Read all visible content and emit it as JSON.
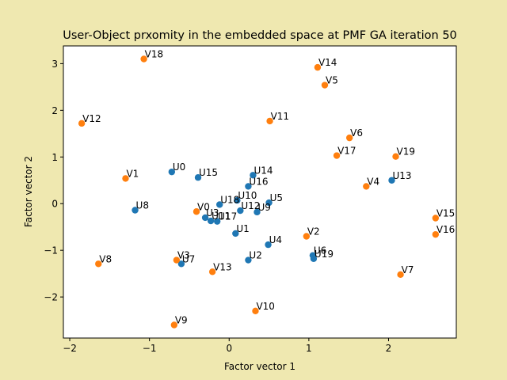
{
  "chart_data": {
    "type": "scatter",
    "title": "User-Object prxomity in the embedded space at PMF GA iteration 50",
    "xlabel": "Factor vector 1",
    "ylabel": "Factor vector 2",
    "xlim": [
      -2.08,
      2.85
    ],
    "ylim": [
      -2.88,
      3.38
    ],
    "xticks": [
      -2,
      -1,
      0,
      1,
      2
    ],
    "yticks": [
      -2,
      -1,
      0,
      1,
      2,
      3
    ],
    "grid": false,
    "colors": {
      "users": "#1f77b4",
      "objects": "#ff7f0e",
      "background": "#efe8b0",
      "axes_bg": "#ffffff"
    },
    "series": [
      {
        "key": "users",
        "points": [
          {
            "label": "U0",
            "x": -0.72,
            "y": 0.68
          },
          {
            "label": "U1",
            "x": 0.08,
            "y": -0.64
          },
          {
            "label": "U2",
            "x": 0.24,
            "y": -1.21
          },
          {
            "label": "U3",
            "x": -0.3,
            "y": -0.3
          },
          {
            "label": "U4",
            "x": 0.49,
            "y": -0.88
          },
          {
            "label": "U5",
            "x": 0.5,
            "y": 0.02
          },
          {
            "label": "U6",
            "x": 1.05,
            "y": -1.11
          },
          {
            "label": "U7",
            "x": -0.6,
            "y": -1.29
          },
          {
            "label": "U8",
            "x": -1.18,
            "y": -0.14
          },
          {
            "label": "U9",
            "x": 0.35,
            "y": -0.18
          },
          {
            "label": "U10",
            "x": 0.1,
            "y": 0.07
          },
          {
            "label": "U11",
            "x": -0.23,
            "y": -0.37
          },
          {
            "label": "U12",
            "x": 0.14,
            "y": -0.15
          },
          {
            "label": "U13",
            "x": 2.04,
            "y": 0.5
          },
          {
            "label": "U14",
            "x": 0.3,
            "y": 0.61
          },
          {
            "label": "U15",
            "x": -0.39,
            "y": 0.56
          },
          {
            "label": "U16",
            "x": 0.24,
            "y": 0.37
          },
          {
            "label": "U17",
            "x": -0.15,
            "y": -0.38
          },
          {
            "label": "U18",
            "x": -0.12,
            "y": -0.02
          },
          {
            "label": "U19",
            "x": 1.06,
            "y": -1.18
          }
        ]
      },
      {
        "key": "objects",
        "points": [
          {
            "label": "V0",
            "x": -0.41,
            "y": -0.17
          },
          {
            "label": "V1",
            "x": -1.3,
            "y": 0.54
          },
          {
            "label": "V2",
            "x": 0.97,
            "y": -0.7
          },
          {
            "label": "V3",
            "x": -0.66,
            "y": -1.21
          },
          {
            "label": "V4",
            "x": 1.72,
            "y": 0.37
          },
          {
            "label": "V5",
            "x": 1.2,
            "y": 2.54
          },
          {
            "label": "V6",
            "x": 1.51,
            "y": 1.41
          },
          {
            "label": "V7",
            "x": 2.15,
            "y": -1.52
          },
          {
            "label": "V8",
            "x": -1.64,
            "y": -1.29
          },
          {
            "label": "V9",
            "x": -0.69,
            "y": -2.6
          },
          {
            "label": "V10",
            "x": 0.33,
            "y": -2.3
          },
          {
            "label": "V11",
            "x": 0.51,
            "y": 1.77
          },
          {
            "label": "V12",
            "x": -1.85,
            "y": 1.72
          },
          {
            "label": "V13",
            "x": -0.21,
            "y": -1.46
          },
          {
            "label": "V14",
            "x": 1.11,
            "y": 2.92
          },
          {
            "label": "V15",
            "x": 2.59,
            "y": -0.31
          },
          {
            "label": "V16",
            "x": 2.59,
            "y": -0.66
          },
          {
            "label": "V17",
            "x": 1.35,
            "y": 1.03
          },
          {
            "label": "V18",
            "x": -1.07,
            "y": 3.1
          },
          {
            "label": "V19",
            "x": 2.09,
            "y": 1.01
          }
        ]
      }
    ]
  }
}
